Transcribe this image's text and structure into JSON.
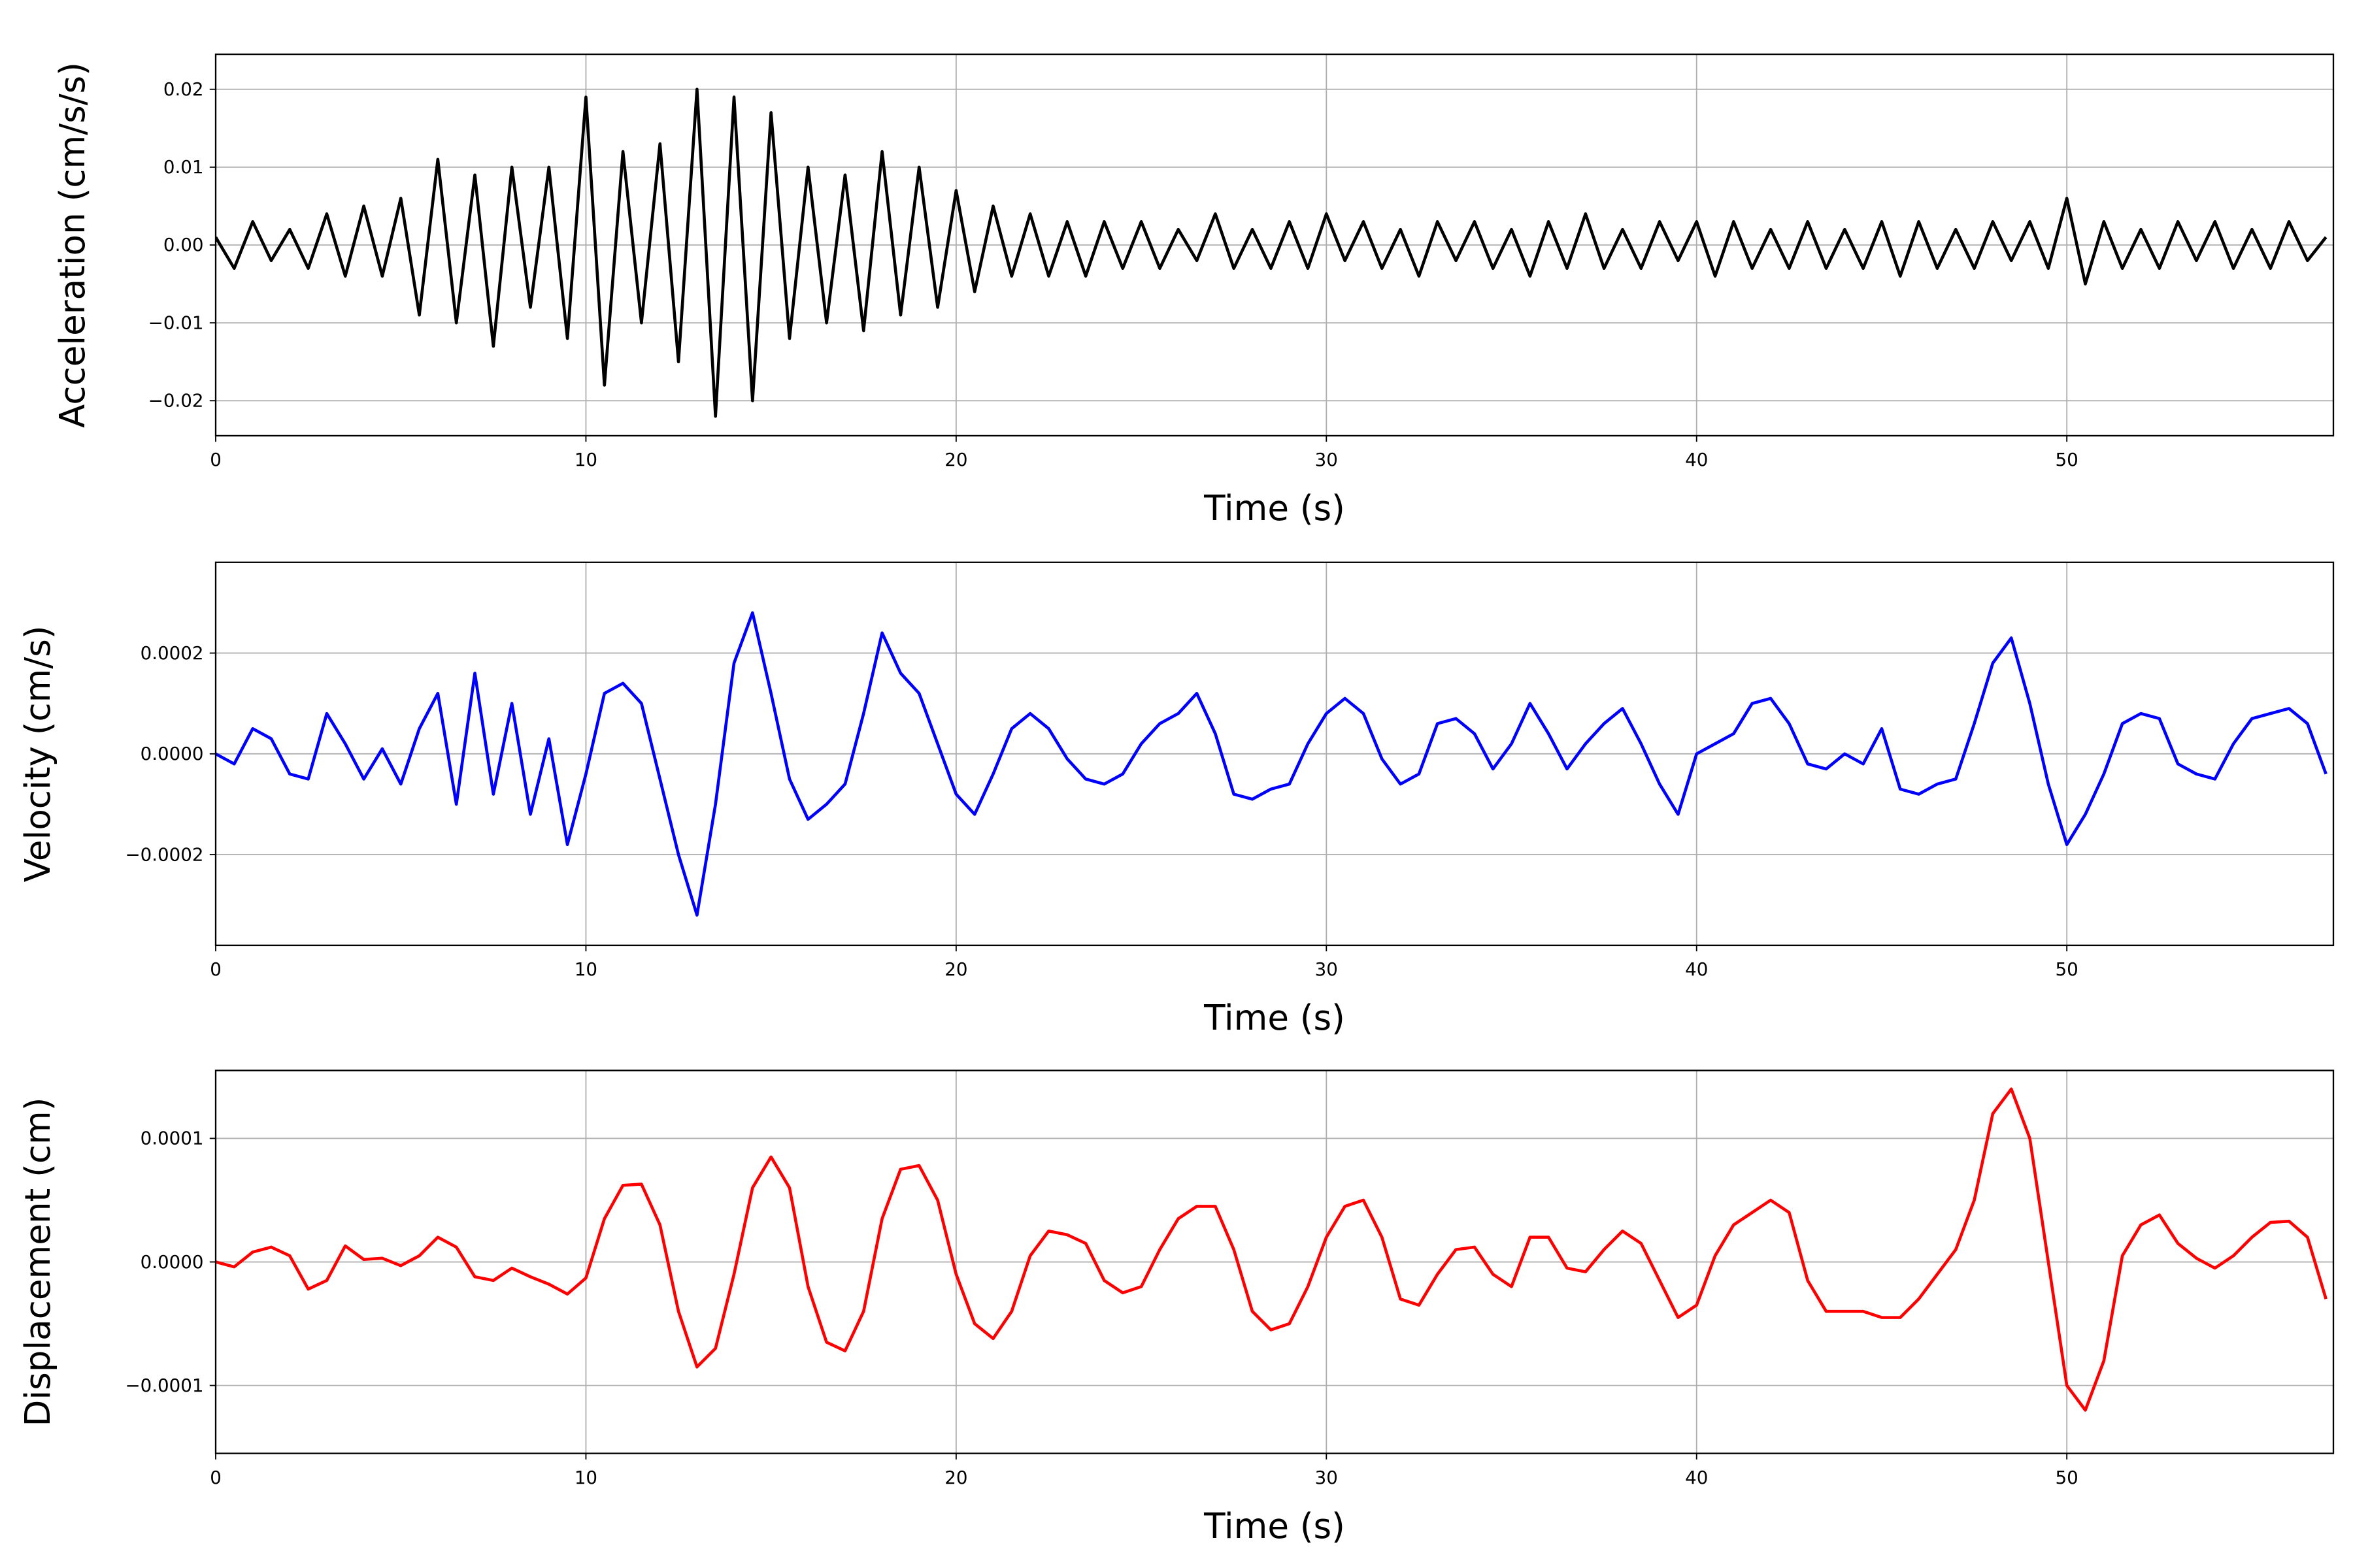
{
  "chart_data": [
    {
      "type": "line",
      "ylabel": "Acceleration (cm/s/s)",
      "xlabel": "Time (s)",
      "color": "#000000",
      "grid": true,
      "xlim": [
        0,
        57.2
      ],
      "xticks": [
        0,
        10,
        20,
        30,
        40,
        50
      ],
      "ylim": [
        -0.0245,
        0.0245
      ],
      "yticks": [
        {
          "value": -0.02,
          "label": "−0.02"
        },
        {
          "value": -0.01,
          "label": "−0.01"
        },
        {
          "value": 0,
          "label": "0.00"
        },
        {
          "value": 0.01,
          "label": "0.01"
        },
        {
          "value": 0.02,
          "label": "0.02"
        }
      ],
      "x": [
        0,
        0.5,
        1,
        1.5,
        2,
        2.5,
        3,
        3.5,
        4,
        4.5,
        5,
        5.5,
        6,
        6.5,
        7,
        7.5,
        8,
        8.5,
        9,
        9.5,
        10,
        10.5,
        11,
        11.5,
        12,
        12.5,
        13,
        13.5,
        14,
        14.5,
        15,
        15.5,
        16,
        16.5,
        17,
        17.5,
        18,
        18.5,
        19,
        19.5,
        20,
        20.5,
        21,
        21.5,
        22,
        22.5,
        23,
        23.5,
        24,
        24.5,
        25,
        25.5,
        26,
        26.5,
        27,
        27.5,
        28,
        28.5,
        29,
        29.5,
        30,
        30.5,
        31,
        31.5,
        32,
        32.5,
        33,
        33.5,
        34,
        34.5,
        35,
        35.5,
        36,
        36.5,
        37,
        37.5,
        38,
        38.5,
        39,
        39.5,
        40,
        40.5,
        41,
        41.5,
        42,
        42.5,
        43,
        43.5,
        44,
        44.5,
        45,
        45.5,
        46,
        46.5,
        47,
        47.5,
        48,
        48.5,
        49,
        49.5,
        50,
        50.5,
        51,
        51.5,
        52,
        52.5,
        53,
        53.5,
        54,
        54.5,
        55,
        55.5,
        56,
        56.5,
        57
      ],
      "values": [
        0.001,
        -0.003,
        0.003,
        -0.002,
        0.002,
        -0.003,
        0.004,
        -0.004,
        0.005,
        -0.004,
        0.006,
        -0.009,
        0.011,
        -0.01,
        0.009,
        -0.013,
        0.01,
        -0.008,
        0.01,
        -0.012,
        0.019,
        -0.018,
        0.012,
        -0.01,
        0.013,
        -0.015,
        0.02,
        -0.022,
        0.019,
        -0.02,
        0.017,
        -0.012,
        0.01,
        -0.01,
        0.009,
        -0.011,
        0.012,
        -0.009,
        0.01,
        -0.008,
        0.007,
        -0.006,
        0.005,
        -0.004,
        0.004,
        -0.004,
        0.003,
        -0.004,
        0.003,
        -0.003,
        0.003,
        -0.003,
        0.002,
        -0.002,
        0.004,
        -0.003,
        0.002,
        -0.003,
        0.003,
        -0.003,
        0.004,
        -0.002,
        0.003,
        -0.003,
        0.002,
        -0.004,
        0.003,
        -0.002,
        0.003,
        -0.003,
        0.002,
        -0.004,
        0.003,
        -0.003,
        0.004,
        -0.003,
        0.002,
        -0.003,
        0.003,
        -0.002,
        0.003,
        -0.004,
        0.003,
        -0.003,
        0.002,
        -0.003,
        0.003,
        -0.003,
        0.002,
        -0.003,
        0.003,
        -0.004,
        0.003,
        -0.003,
        0.002,
        -0.003,
        0.003,
        -0.002,
        0.003,
        -0.003,
        0.006,
        -0.005,
        0.003,
        -0.003,
        0.002,
        -0.003,
        0.003,
        -0.002,
        0.003,
        -0.003,
        0.002,
        -0.003,
        0.003,
        -0.002,
        0.001
      ]
    },
    {
      "type": "line",
      "ylabel": "Velocity (cm/s)",
      "xlabel": "Time (s)",
      "color": "#0000ff",
      "grid": true,
      "xlim": [
        0,
        57.2
      ],
      "xticks": [
        0,
        10,
        20,
        30,
        40,
        50
      ],
      "ylim": [
        -0.00038,
        0.00038
      ],
      "yticks": [
        {
          "value": -0.0002,
          "label": "−0.0002"
        },
        {
          "value": 0,
          "label": "0.0000"
        },
        {
          "value": 0.0002,
          "label": "0.0002"
        }
      ],
      "x": [
        0,
        0.5,
        1,
        1.5,
        2,
        2.5,
        3,
        3.5,
        4,
        4.5,
        5,
        5.5,
        6,
        6.5,
        7,
        7.5,
        8,
        8.5,
        9,
        9.5,
        10,
        10.5,
        11,
        11.5,
        12,
        12.5,
        13,
        13.5,
        14,
        14.5,
        15,
        15.5,
        16,
        16.5,
        17,
        17.5,
        18,
        18.5,
        19,
        19.5,
        20,
        20.5,
        21,
        21.5,
        22,
        22.5,
        23,
        23.5,
        24,
        24.5,
        25,
        25.5,
        26,
        26.5,
        27,
        27.5,
        28,
        28.5,
        29,
        29.5,
        30,
        30.5,
        31,
        31.5,
        32,
        32.5,
        33,
        33.5,
        34,
        34.5,
        35,
        35.5,
        36,
        36.5,
        37,
        37.5,
        38,
        38.5,
        39,
        39.5,
        40,
        40.5,
        41,
        41.5,
        42,
        42.5,
        43,
        43.5,
        44,
        44.5,
        45,
        45.5,
        46,
        46.5,
        47,
        47.5,
        48,
        48.5,
        49,
        49.5,
        50,
        50.5,
        51,
        51.5,
        52,
        52.5,
        53,
        53.5,
        54,
        54.5,
        55,
        55.5,
        56,
        56.5,
        57
      ],
      "values": [
        0,
        -2e-05,
        5e-05,
        3e-05,
        -4e-05,
        -5e-05,
        8e-05,
        2e-05,
        -5e-05,
        1e-05,
        -6e-05,
        5e-05,
        0.00012,
        -0.0001,
        0.00016,
        -8e-05,
        0.0001,
        -0.00012,
        3e-05,
        -0.00018,
        -4e-05,
        0.00012,
        0.00014,
        0.0001,
        -5e-05,
        -0.0002,
        -0.00032,
        -0.0001,
        0.00018,
        0.00028,
        0.00012,
        -5e-05,
        -0.00013,
        -0.0001,
        -6e-05,
        8e-05,
        0.00024,
        0.00016,
        0.00012,
        2e-05,
        -8e-05,
        -0.00012,
        -4e-05,
        5e-05,
        8e-05,
        5e-05,
        -1e-05,
        -5e-05,
        -6e-05,
        -4e-05,
        2e-05,
        6e-05,
        8e-05,
        0.00012,
        4e-05,
        -8e-05,
        -9e-05,
        -7e-05,
        -6e-05,
        2e-05,
        8e-05,
        0.00011,
        8e-05,
        -1e-05,
        -6e-05,
        -4e-05,
        6e-05,
        7e-05,
        4e-05,
        -3e-05,
        2e-05,
        0.0001,
        4e-05,
        -3e-05,
        2e-05,
        6e-05,
        9e-05,
        2e-05,
        -6e-05,
        -0.00012,
        0,
        2e-05,
        4e-05,
        0.0001,
        0.00011,
        6e-05,
        -2e-05,
        -3e-05,
        0,
        -2e-05,
        5e-05,
        -7e-05,
        -8e-05,
        -6e-05,
        -5e-05,
        6e-05,
        0.00018,
        0.00023,
        0.0001,
        -6e-05,
        -0.00018,
        -0.00012,
        -4e-05,
        6e-05,
        8e-05,
        7e-05,
        -2e-05,
        -4e-05,
        -5e-05,
        2e-05,
        7e-05,
        8e-05,
        9e-05,
        6e-05,
        -4e-05
      ]
    },
    {
      "type": "line",
      "ylabel": "Displacement (cm)",
      "xlabel": "Time (s)",
      "color": "#ff0000",
      "grid": true,
      "xlim": [
        0,
        57.2
      ],
      "xticks": [
        0,
        10,
        20,
        30,
        40,
        50
      ],
      "ylim": [
        -0.000155,
        0.000155
      ],
      "yticks": [
        {
          "value": -0.0001,
          "label": "−0.0001"
        },
        {
          "value": 0,
          "label": "0.0000"
        },
        {
          "value": 0.0001,
          "label": "0.0001"
        }
      ],
      "x": [
        0,
        0.5,
        1,
        1.5,
        2,
        2.5,
        3,
        3.5,
        4,
        4.5,
        5,
        5.5,
        6,
        6.5,
        7,
        7.5,
        8,
        8.5,
        9,
        9.5,
        10,
        10.5,
        11,
        11.5,
        12,
        12.5,
        13,
        13.5,
        14,
        14.5,
        15,
        15.5,
        16,
        16.5,
        17,
        17.5,
        18,
        18.5,
        19,
        19.5,
        20,
        20.5,
        21,
        21.5,
        22,
        22.5,
        23,
        23.5,
        24,
        24.5,
        25,
        25.5,
        26,
        26.5,
        27,
        27.5,
        28,
        28.5,
        29,
        29.5,
        30,
        30.5,
        31,
        31.5,
        32,
        32.5,
        33,
        33.5,
        34,
        34.5,
        35,
        35.5,
        36,
        36.5,
        37,
        37.5,
        38,
        38.5,
        39,
        39.5,
        40,
        40.5,
        41,
        41.5,
        42,
        42.5,
        43,
        43.5,
        44,
        44.5,
        45,
        45.5,
        46,
        46.5,
        47,
        47.5,
        48,
        48.5,
        49,
        49.5,
        50,
        50.5,
        51,
        51.5,
        52,
        52.5,
        53,
        53.5,
        54,
        54.5,
        55,
        55.5,
        56,
        56.5,
        57
      ],
      "values": [
        0,
        -4e-06,
        8e-06,
        1.2e-05,
        5e-06,
        -2.2e-05,
        -1.5e-05,
        1.3e-05,
        2e-06,
        3e-06,
        -3e-06,
        5e-06,
        2e-05,
        1.2e-05,
        -1.2e-05,
        -1.5e-05,
        -5e-06,
        -1.2e-05,
        -1.8e-05,
        -2.6e-05,
        -1.3e-05,
        3.5e-05,
        6.2e-05,
        6.3e-05,
        3e-05,
        -4e-05,
        -8.5e-05,
        -7e-05,
        -1e-05,
        6e-05,
        8.5e-05,
        6e-05,
        -2e-05,
        -6.5e-05,
        -7.2e-05,
        -4e-05,
        3.5e-05,
        7.5e-05,
        7.8e-05,
        5e-05,
        -1e-05,
        -5e-05,
        -6.2e-05,
        -4e-05,
        5e-06,
        2.5e-05,
        2.2e-05,
        1.5e-05,
        -1.5e-05,
        -2.5e-05,
        -2e-05,
        1e-05,
        3.5e-05,
        4.5e-05,
        4.5e-05,
        1e-05,
        -4e-05,
        -5.5e-05,
        -5e-05,
        -2e-05,
        2e-05,
        4.5e-05,
        5e-05,
        2e-05,
        -3e-05,
        -3.5e-05,
        -1e-05,
        1e-05,
        1.2e-05,
        -1e-05,
        -2e-05,
        2e-05,
        2e-05,
        -5e-06,
        -8e-06,
        1e-05,
        2.5e-05,
        1.5e-05,
        -1.5e-05,
        -4.5e-05,
        -3.5e-05,
        5e-06,
        3e-05,
        4e-05,
        5e-05,
        4e-05,
        -1.5e-05,
        -4e-05,
        -4e-05,
        -4e-05,
        -4.5e-05,
        -4.5e-05,
        -3e-05,
        -1e-05,
        1e-05,
        5e-05,
        0.00012,
        0.00014,
        0.0001,
        0,
        -0.0001,
        -0.00012,
        -8e-05,
        5e-06,
        3e-05,
        3.8e-05,
        1.5e-05,
        3e-06,
        -5e-06,
        5e-06,
        2e-05,
        3.2e-05,
        3.3e-05,
        2e-05,
        -3e-05
      ]
    }
  ]
}
